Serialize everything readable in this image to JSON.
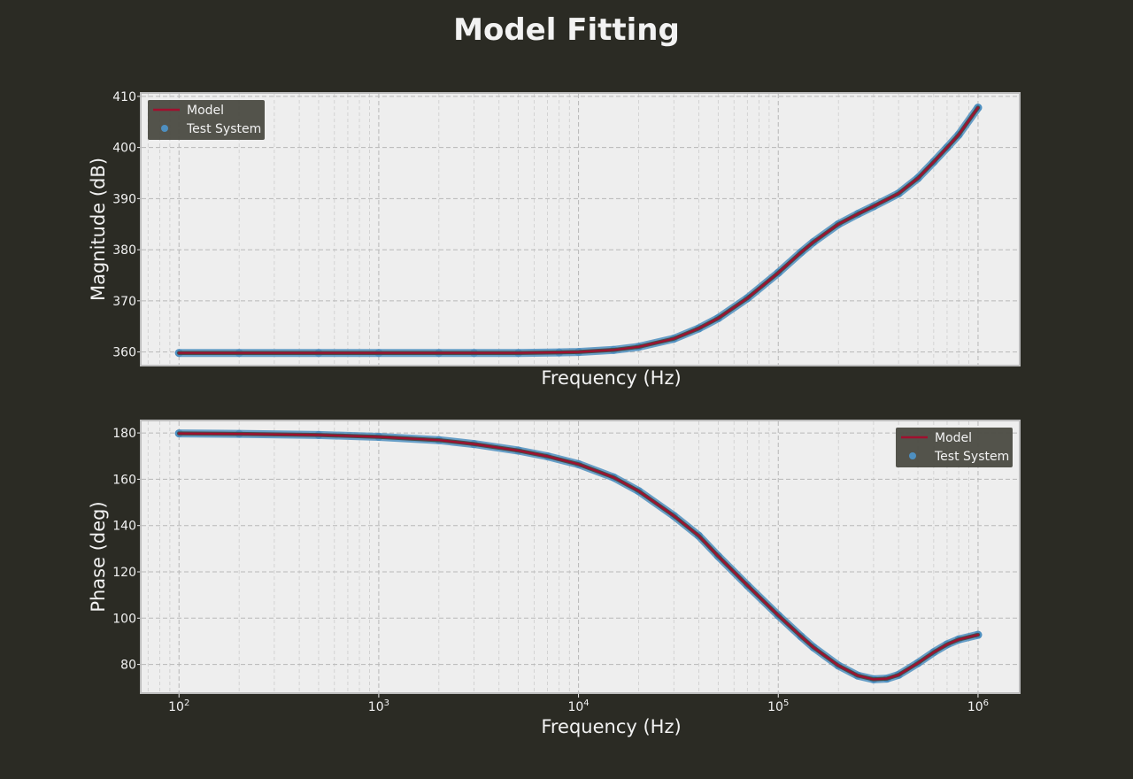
{
  "chart_data": {
    "title": "Model Fitting",
    "type": "line",
    "subplots": [
      {
        "xlabel": "Frequency (Hz)",
        "ylabel": "Magnitude (dB)",
        "xscale": "log",
        "xlim": [
          65,
          1600000
        ],
        "ylim": [
          357.5,
          410.5
        ],
        "yticks": [
          360,
          370,
          380,
          390,
          400,
          410
        ],
        "show_xticklabels": false,
        "grid": true,
        "legend": "upper left",
        "series": [
          {
            "name": "Model",
            "style": "line",
            "color": "#a0102e",
            "x": [
              100,
              200,
              500,
              1000,
              2000,
              3000,
              5000,
              8000,
              10000,
              15000,
              20000,
              30000,
              40000,
              50000,
              70000,
              100000,
              130000,
              150000,
              200000,
              250000,
              300000,
              400000,
              500000,
              600000,
              700000,
              800000,
              1000000
            ],
            "y": [
              359.8,
              359.8,
              359.8,
              359.8,
              359.8,
              359.8,
              359.8,
              359.9,
              360.0,
              360.4,
              361.0,
              362.6,
              364.6,
              366.6,
              370.5,
              375.5,
              379.5,
              381.5,
              385.0,
              387.0,
              388.5,
              391.0,
              394.0,
              397.2,
              400.0,
              402.5,
              407.8
            ]
          },
          {
            "name": "Test System",
            "style": "scatter",
            "color": "#4e8fc0",
            "x": [
              100,
              200,
              500,
              1000,
              2000,
              3000,
              5000,
              8000,
              10000,
              15000,
              20000,
              30000,
              40000,
              50000,
              70000,
              100000,
              130000,
              150000,
              200000,
              250000,
              300000,
              400000,
              500000,
              600000,
              700000,
              800000,
              1000000
            ],
            "y": [
              359.8,
              359.8,
              359.8,
              359.8,
              359.8,
              359.8,
              359.8,
              359.9,
              360.0,
              360.4,
              361.0,
              362.6,
              364.6,
              366.6,
              370.5,
              375.5,
              379.5,
              381.5,
              385.0,
              387.0,
              388.5,
              391.0,
              394.0,
              397.2,
              400.0,
              402.5,
              407.8
            ]
          }
        ]
      },
      {
        "xlabel": "Frequency (Hz)",
        "ylabel": "Phase (deg)",
        "xscale": "log",
        "xlim": [
          65,
          1600000
        ],
        "ylim": [
          68,
          185
        ],
        "yticks": [
          80,
          100,
          120,
          140,
          160,
          180
        ],
        "xticks": [
          100,
          1000,
          10000,
          100000,
          1000000
        ],
        "show_xticklabels": true,
        "grid": true,
        "legend": "upper right",
        "series": [
          {
            "name": "Model",
            "style": "line",
            "color": "#a0102e",
            "x": [
              100,
              200,
              500,
              1000,
              2000,
              3000,
              5000,
              7000,
              10000,
              15000,
              20000,
              30000,
              40000,
              50000,
              70000,
              100000,
              130000,
              150000,
              200000,
              250000,
              300000,
              350000,
              400000,
              500000,
              600000,
              700000,
              800000,
              1000000
            ],
            "y": [
              179.8,
              179.6,
              179.1,
              178.3,
              176.9,
              175.2,
              172.4,
              169.9,
              166.5,
              160.8,
              154.9,
              144.2,
              135.6,
              126.8,
              114.2,
              101.2,
              92.1,
              87.4,
              79.5,
              75.2,
              73.6,
              73.9,
              75.5,
              80.6,
              85.3,
              88.7,
              90.8,
              92.8
            ]
          },
          {
            "name": "Test System",
            "style": "scatter",
            "color": "#4e8fc0",
            "x": [
              100,
              200,
              500,
              1000,
              2000,
              3000,
              5000,
              7000,
              10000,
              15000,
              20000,
              30000,
              40000,
              50000,
              70000,
              100000,
              130000,
              150000,
              200000,
              250000,
              300000,
              350000,
              400000,
              500000,
              600000,
              700000,
              800000,
              1000000
            ],
            "y": [
              179.8,
              179.6,
              179.1,
              178.3,
              176.9,
              175.2,
              172.4,
              169.9,
              166.5,
              160.8,
              154.9,
              144.2,
              135.6,
              126.8,
              114.2,
              101.2,
              92.1,
              87.4,
              79.5,
              75.2,
              73.6,
              73.9,
              75.5,
              80.6,
              85.3,
              88.7,
              90.8,
              92.8
            ]
          }
        ]
      }
    ]
  },
  "colors": {
    "figure_background": "#2b2b24",
    "axes_background": "#eeeeee",
    "axes_frame": "#bdbdbd",
    "text": "#f2f2f2",
    "legend_background": "#4d4d45"
  }
}
